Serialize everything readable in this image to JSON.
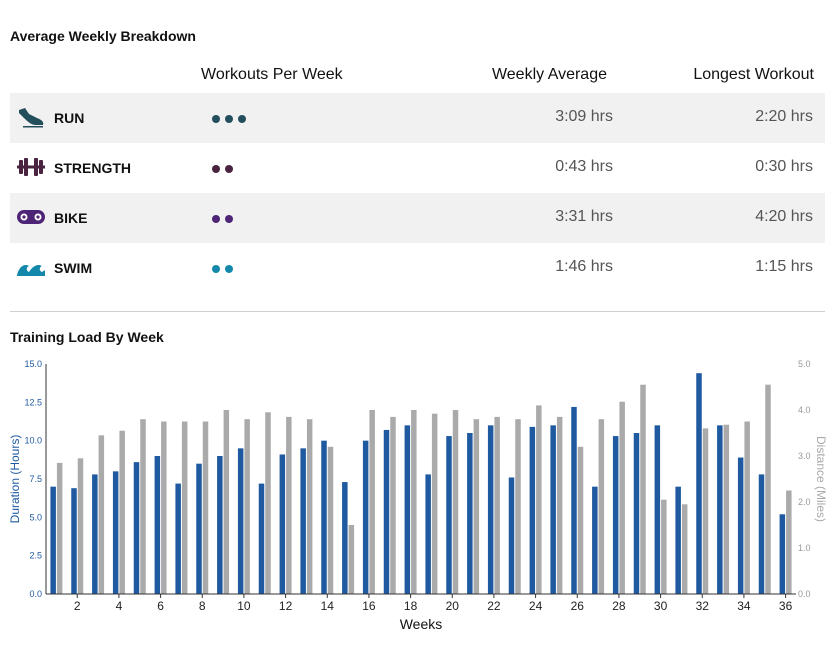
{
  "breakdown": {
    "title": "Average Weekly Breakdown",
    "headers": {
      "workouts": "Workouts Per Week",
      "weekly": "Weekly Average",
      "longest": "Longest Workout"
    },
    "rows": [
      {
        "label": "RUN",
        "icon": "run-shoe-icon",
        "dots": 3,
        "color": "#234e5c",
        "weekly": "3:09 hrs",
        "longest": "2:20 hrs"
      },
      {
        "label": "STRENGTH",
        "icon": "dumbbell-icon",
        "dots": 2,
        "color": "#4a2340",
        "weekly": "0:43 hrs",
        "longest": "0:30 hrs"
      },
      {
        "label": "BIKE",
        "icon": "bike-chain-icon",
        "dots": 2,
        "color": "#4e2576",
        "weekly": "3:31 hrs",
        "longest": "4:20 hrs"
      },
      {
        "label": "SWIM",
        "icon": "wave-icon",
        "dots": 2,
        "color": "#1488aa",
        "weekly": "1:46 hrs",
        "longest": "1:15 hrs"
      }
    ]
  },
  "load_title": "Training Load By Week",
  "chart_data": {
    "type": "bar",
    "title": "Training Load By Week",
    "xlabel": "Weeks",
    "ylabel_left": "Duration (Hours)",
    "ylabel_right": "Distance (Miles)",
    "ylim_left": [
      0,
      15
    ],
    "ylim_right": [
      0,
      5
    ],
    "yticks_left": [
      "0.0",
      "2.5",
      "5.0",
      "7.5",
      "10.0",
      "12.5",
      "15.0"
    ],
    "yticks_right": [
      "0.0",
      "1.0",
      "2.0",
      "3.0",
      "4.0",
      "5.0"
    ],
    "x": [
      1,
      2,
      3,
      4,
      5,
      6,
      7,
      8,
      9,
      10,
      11,
      12,
      13,
      14,
      15,
      16,
      17,
      18,
      19,
      20,
      21,
      22,
      23,
      24,
      25,
      26,
      27,
      28,
      29,
      30,
      31,
      32,
      33,
      34,
      35,
      36
    ],
    "xticks": [
      "2",
      "4",
      "6",
      "8",
      "10",
      "12",
      "14",
      "16",
      "18",
      "20",
      "22",
      "24",
      "26",
      "28",
      "30",
      "32",
      "34",
      "36"
    ],
    "grid": false,
    "legend": "none",
    "series": [
      {
        "axis": "left",
        "color": "#1f5aa0",
        "values": [
          7.0,
          6.9,
          7.8,
          8.0,
          8.6,
          9.0,
          7.2,
          8.5,
          9.0,
          9.5,
          7.2,
          9.1,
          9.5,
          10.0,
          7.3,
          10.0,
          10.7,
          11.0,
          7.8,
          10.3,
          10.5,
          11.0,
          7.6,
          10.9,
          11.0,
          12.2,
          7.0,
          10.3,
          10.5,
          11.0,
          7.0,
          14.4,
          11.0,
          8.9,
          7.8,
          5.2
        ]
      },
      {
        "axis": "right",
        "color": "#aaaaaa",
        "values": [
          2.85,
          2.95,
          3.45,
          3.55,
          3.8,
          3.75,
          3.75,
          3.75,
          4.0,
          3.8,
          3.95,
          3.85,
          3.8,
          3.2,
          1.5,
          4.0,
          3.85,
          4.0,
          3.92,
          4.0,
          3.8,
          3.85,
          3.8,
          4.1,
          3.85,
          3.2,
          3.8,
          4.18,
          4.55,
          2.05,
          1.95,
          3.6,
          3.68,
          3.75,
          4.55,
          2.25
        ]
      }
    ]
  }
}
